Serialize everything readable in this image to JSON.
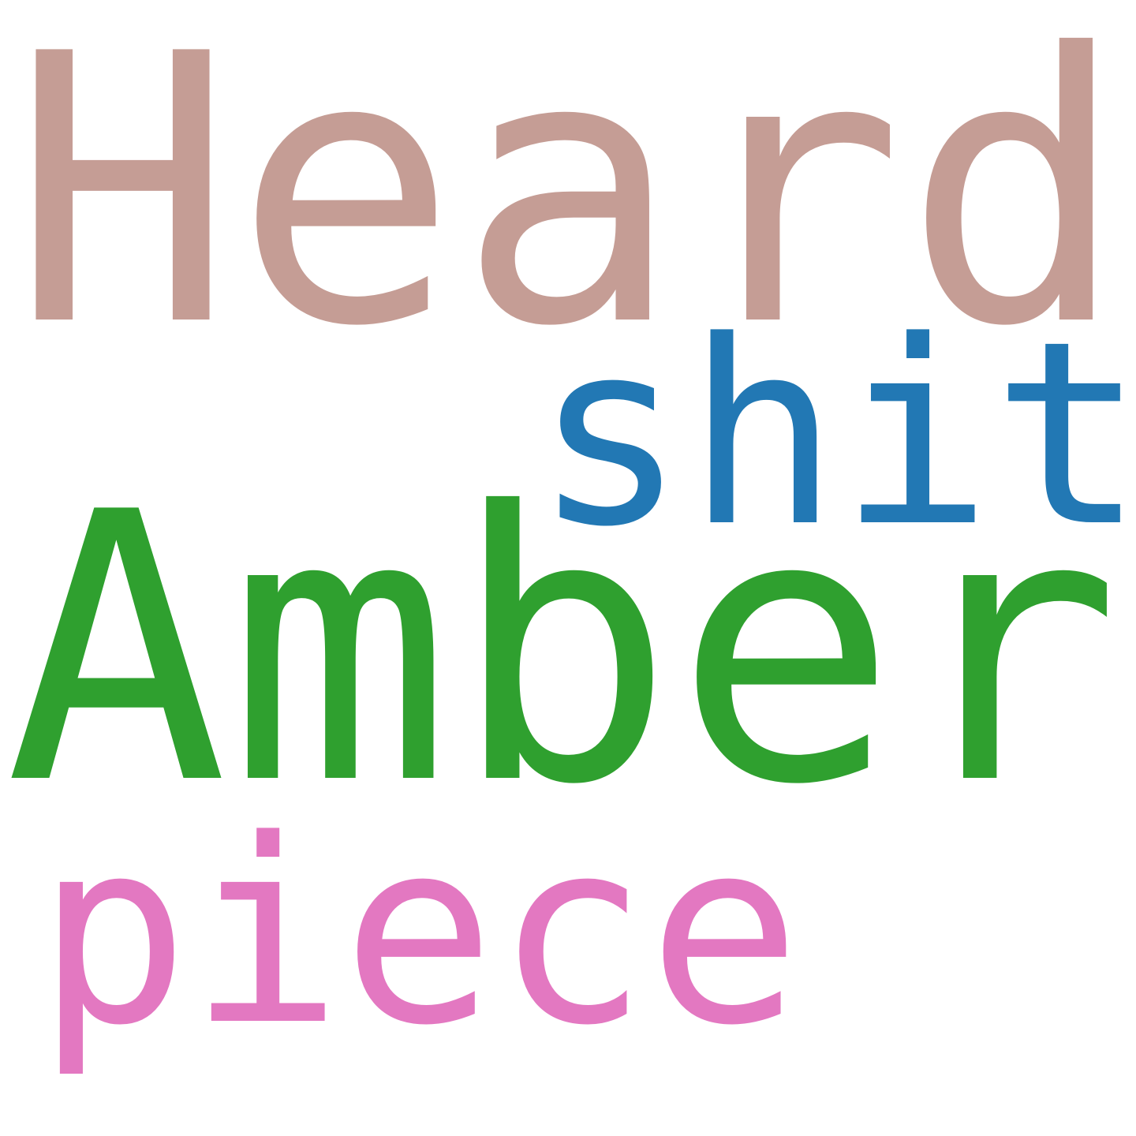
{
  "cloud": {
    "words": [
      {
        "text": "Heard",
        "color": "#c59d95"
      },
      {
        "text": "shit",
        "color": "#2278b4"
      },
      {
        "text": "Amber",
        "color": "#2fa02f"
      },
      {
        "text": "piece",
        "color": "#e378c1"
      }
    ]
  }
}
